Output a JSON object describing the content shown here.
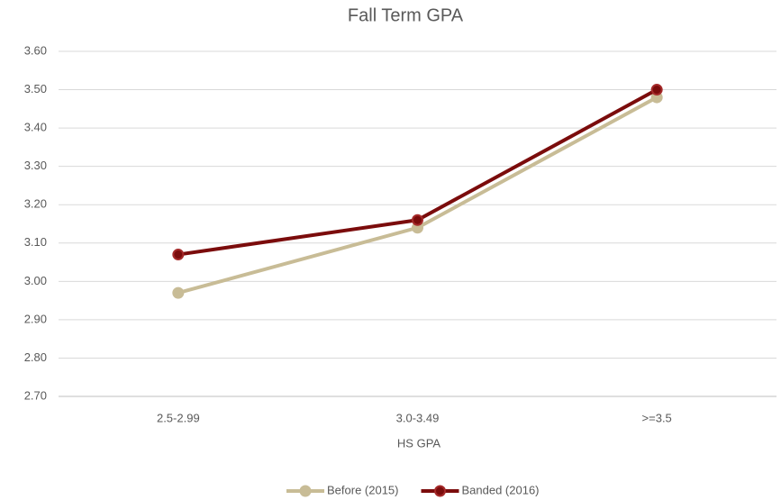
{
  "chart_data": {
    "type": "line",
    "title": "Fall Term GPA",
    "x_label": "HS GPA",
    "categories": [
      "2.5-2.99",
      "3.0-3.49",
      ">=3.5"
    ],
    "series": [
      {
        "name": "Before (2015)",
        "color": "#c8bc96",
        "values": [
          2.97,
          3.14,
          3.48
        ]
      },
      {
        "name": "Banded (2016)",
        "color": "#7b0c0c",
        "values": [
          3.07,
          3.16,
          3.5
        ]
      }
    ],
    "ylim": [
      2.7,
      3.6
    ],
    "yticks": [
      {
        "value": 2.7,
        "label": "2.70"
      },
      {
        "value": 2.8,
        "label": "2.80"
      },
      {
        "value": 2.9,
        "label": "2.90"
      },
      {
        "value": 3.0,
        "label": "3.00"
      },
      {
        "value": 3.1,
        "label": "3.10"
      },
      {
        "value": 3.2,
        "label": "3.20"
      },
      {
        "value": 3.3,
        "label": "3.30"
      },
      {
        "value": 3.4,
        "label": "3.40"
      },
      {
        "value": 3.5,
        "label": "3.50"
      },
      {
        "value": 3.6,
        "label": "3.60"
      }
    ],
    "grid": true,
    "legend": "bottom"
  }
}
